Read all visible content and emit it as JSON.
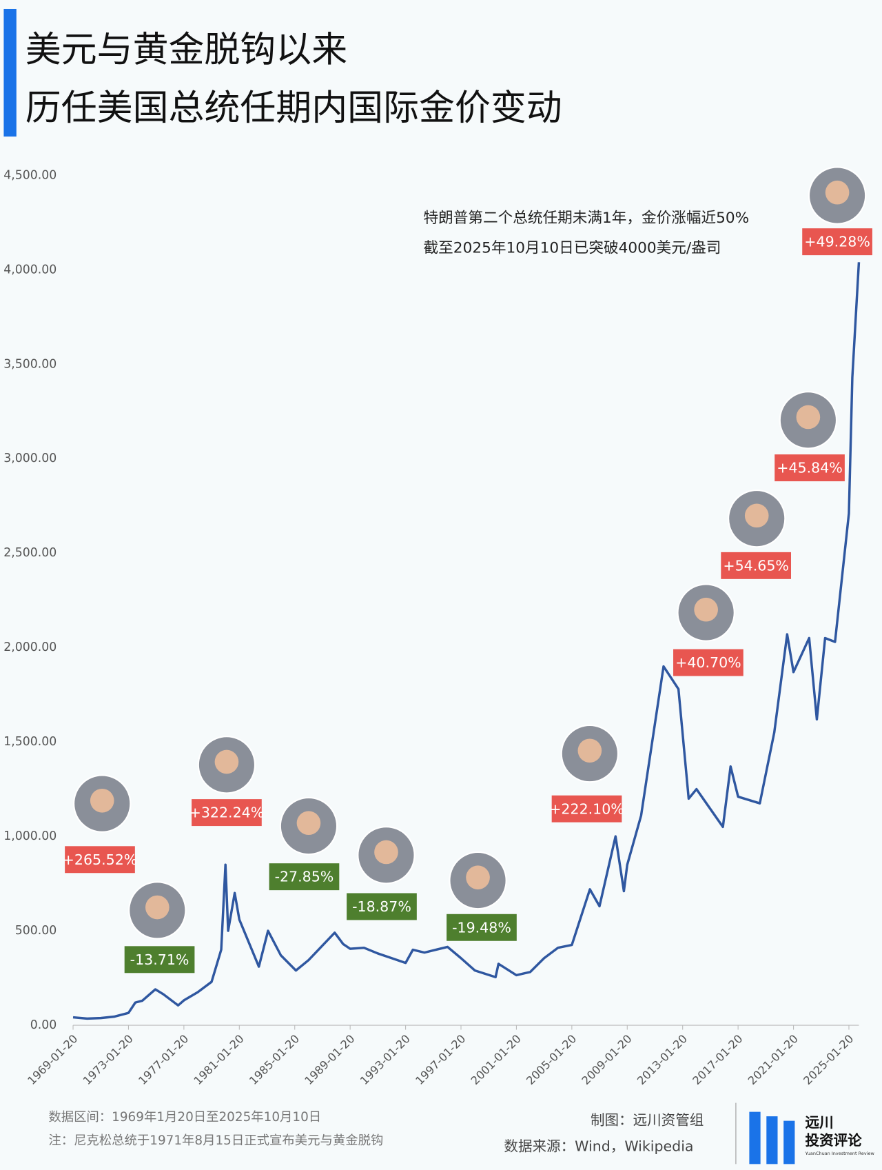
{
  "header": {
    "title_lines": [
      "美元与黄金脱钩以来",
      "历任美国总统任期内国际金价变动"
    ]
  },
  "chart_data": {
    "type": "line",
    "x": [
      "1969-01-20",
      "1970-01-20",
      "1971-01-20",
      "1972-01-20",
      "1973-01-20",
      "1973-07-20",
      "1974-01-20",
      "1974-12-30",
      "1975-07-20",
      "1976-08-20",
      "1977-01-20",
      "1978-01-20",
      "1979-01-20",
      "1979-10-01",
      "1980-01-21",
      "1980-04-01",
      "1980-09-20",
      "1981-01-20",
      "1982-06-20",
      "1983-02-15",
      "1984-01-20",
      "1985-02-20",
      "1986-01-20",
      "1987-12-10",
      "1988-07-20",
      "1989-01-20",
      "1990-01-20",
      "1991-01-20",
      "1992-01-20",
      "1993-01-20",
      "1993-08-01",
      "1994-06-01",
      "1996-02-01",
      "1997-01-20",
      "1998-01-20",
      "1999-07-20",
      "1999-10-05",
      "2001-01-20",
      "2002-01-20",
      "2003-01-20",
      "2004-01-20",
      "2005-01-20",
      "2006-05-12",
      "2007-01-20",
      "2008-03-17",
      "2008-10-24",
      "2009-01-20",
      "2010-01-20",
      "2011-09-05",
      "2012-10-01",
      "2013-06-28",
      "2014-01-20",
      "2015-12-17",
      "2016-07-06",
      "2017-01-20",
      "2018-08-16",
      "2019-09-01",
      "2020-08-06",
      "2021-01-20",
      "2022-03-08",
      "2022-09-28",
      "2023-05-04",
      "2024-01-20",
      "2025-01-20",
      "2025-04-21",
      "2025-10-10"
    ],
    "values": [
      42,
      35,
      38,
      46,
      65,
      120,
      130,
      190,
      165,
      105,
      132,
      175,
      230,
      400,
      850,
      500,
      700,
      560,
      310,
      500,
      370,
      290,
      345,
      490,
      430,
      405,
      410,
      380,
      355,
      330,
      400,
      385,
      415,
      355,
      290,
      255,
      325,
      265,
      282,
      355,
      410,
      425,
      720,
      630,
      1000,
      710,
      850,
      1110,
      1900,
      1780,
      1200,
      1250,
      1050,
      1370,
      1210,
      1175,
      1550,
      2070,
      1870,
      2050,
      1620,
      2050,
      2030,
      2710,
      3430,
      4040
    ],
    "color": "#2f57a0",
    "xlim": [
      "1969-01-20",
      "2025-10-10"
    ],
    "xticks": [
      "1969-01-20",
      "1973-01-20",
      "1977-01-20",
      "1981-01-20",
      "1985-01-20",
      "1989-01-20",
      "1993-01-20",
      "1997-01-20",
      "2001-01-20",
      "2005-01-20",
      "2009-01-20",
      "2013-01-20",
      "2017-01-20",
      "2021-01-20",
      "2025-01-20"
    ],
    "ylim": [
      0,
      4500
    ],
    "yticks": [
      {
        "value": 0,
        "label": "0.00"
      },
      {
        "value": 500,
        "label": "500.00"
      },
      {
        "value": 1000,
        "label": "1,000.00"
      },
      {
        "value": 1500,
        "label": "1,500.00"
      },
      {
        "value": 2000,
        "label": "2,000.00"
      },
      {
        "value": 2500,
        "label": "2,500.00"
      },
      {
        "value": 3000,
        "label": "3,000.00"
      },
      {
        "value": 3500,
        "label": "3,500.00"
      },
      {
        "value": 4000,
        "label": "4,000.00"
      },
      {
        "value": 4500,
        "label": "4,500.00"
      }
    ],
    "annotation_lines": [
      "特朗普第二个总统任期未满1年，金价涨幅近50%",
      "截至2025年10月10日已突破4000美元/盎司"
    ],
    "presidents": [
      {
        "value": 265.52,
        "label": "+265.52%",
        "color": "#e85650"
      },
      {
        "value": -13.71,
        "label": "-13.71%",
        "color": "#4e7f2e"
      },
      {
        "value": 322.24,
        "label": "+322.24%",
        "color": "#e85650"
      },
      {
        "value": -27.85,
        "label": "-27.85%",
        "color": "#4e7f2e"
      },
      {
        "value": -18.87,
        "label": "-18.87%",
        "color": "#4e7f2e"
      },
      {
        "value": -19.48,
        "label": "-19.48%",
        "color": "#4e7f2e"
      },
      {
        "value": 222.1,
        "label": "+222.10%",
        "color": "#e85650"
      },
      {
        "value": 40.7,
        "label": "+40.70%",
        "color": "#e85650"
      },
      {
        "value": 54.65,
        "label": "+54.65%",
        "color": "#e85650"
      },
      {
        "value": 45.84,
        "label": "+45.84%",
        "color": "#e85650"
      },
      {
        "value": 49.28,
        "label": "+49.28%",
        "color": "#e85650"
      }
    ]
  },
  "footer": {
    "notes": [
      "数据区间：1969年1月20日至2025年10月10日",
      "注：尼克松总统于1971年8月15日正式宣布美元与黄金脱钩"
    ],
    "credit": "制图：远川资管组",
    "source": "数据来源：Wind，Wikipedia",
    "logo": [
      "远川",
      "投资评论"
    ],
    "logo_sub": "YuanChuan Investment Review"
  }
}
